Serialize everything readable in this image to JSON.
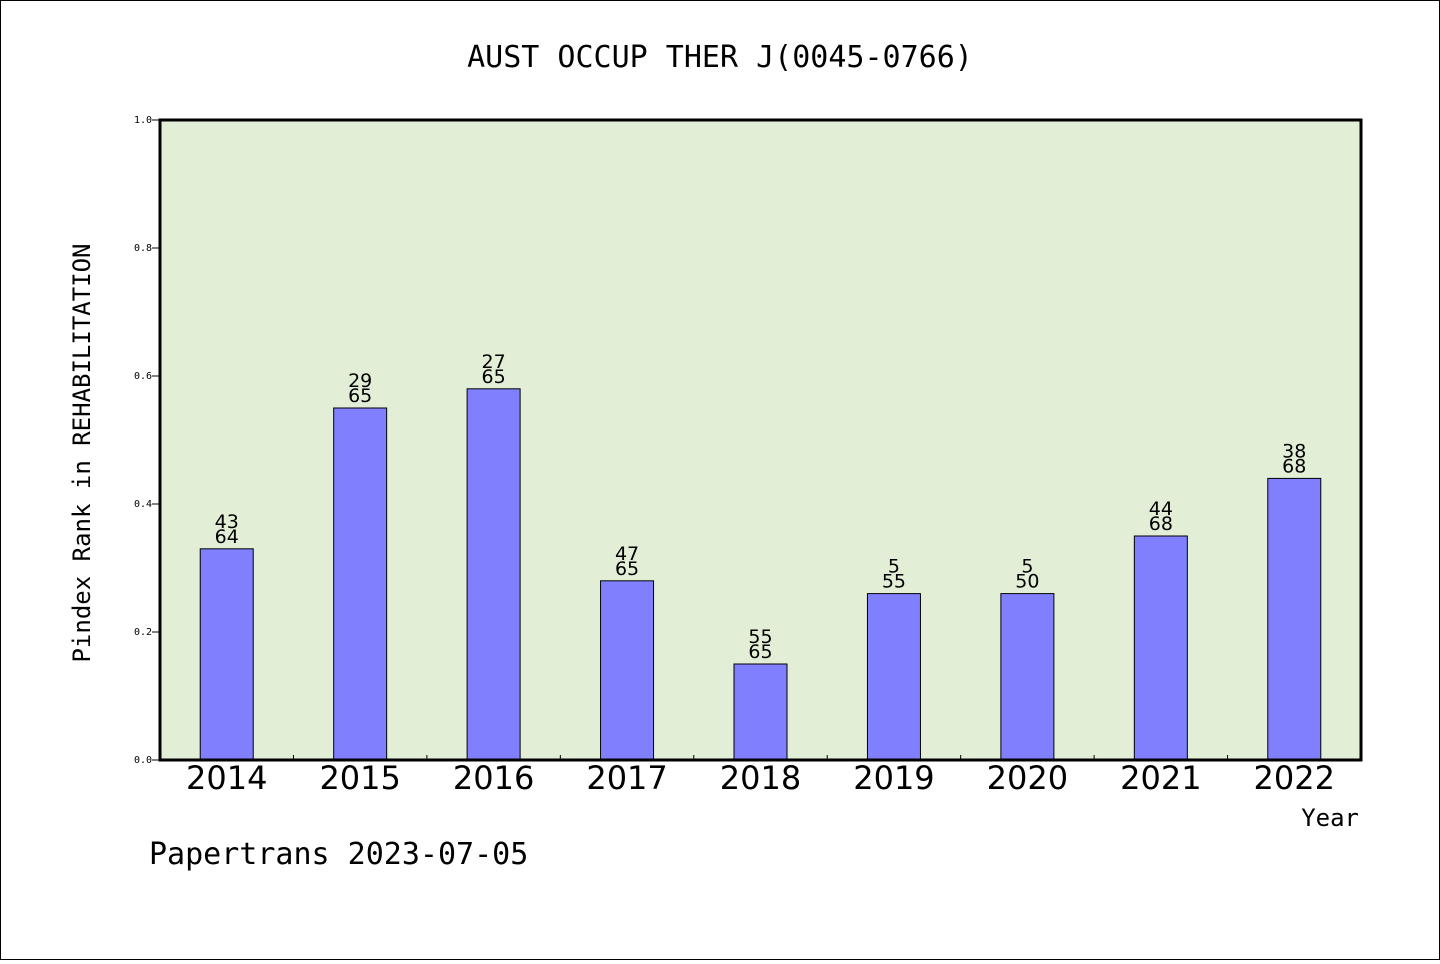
{
  "chart_data": {
    "type": "bar",
    "title": "AUST OCCUP THER J(0045-0766)",
    "ylabel": "Pindex Rank in REHABILITATION",
    "xlabel": "Year",
    "ylim": [
      0,
      1.0
    ],
    "yticks": [
      "0.0",
      "0.2",
      "0.4",
      "0.6",
      "0.8",
      "1.0"
    ],
    "grid": false,
    "categories": [
      "2014",
      "2015",
      "2016",
      "2017",
      "2018",
      "2019",
      "2020",
      "2021",
      "2022"
    ],
    "values": [
      0.33,
      0.55,
      0.58,
      0.28,
      0.15,
      0.26,
      0.26,
      0.35,
      0.44
    ],
    "labels_top": [
      "43",
      "29",
      "27",
      "47",
      "55",
      "5",
      "5",
      "44",
      "38"
    ],
    "labels_bottom": [
      "64",
      "65",
      "65",
      "65",
      "65",
      "55",
      "50",
      "68",
      "68"
    ],
    "colors": {
      "bar": "#8080ff",
      "plot_bg": "#e2efd6"
    }
  },
  "footer": "Papertrans 2023-07-05"
}
